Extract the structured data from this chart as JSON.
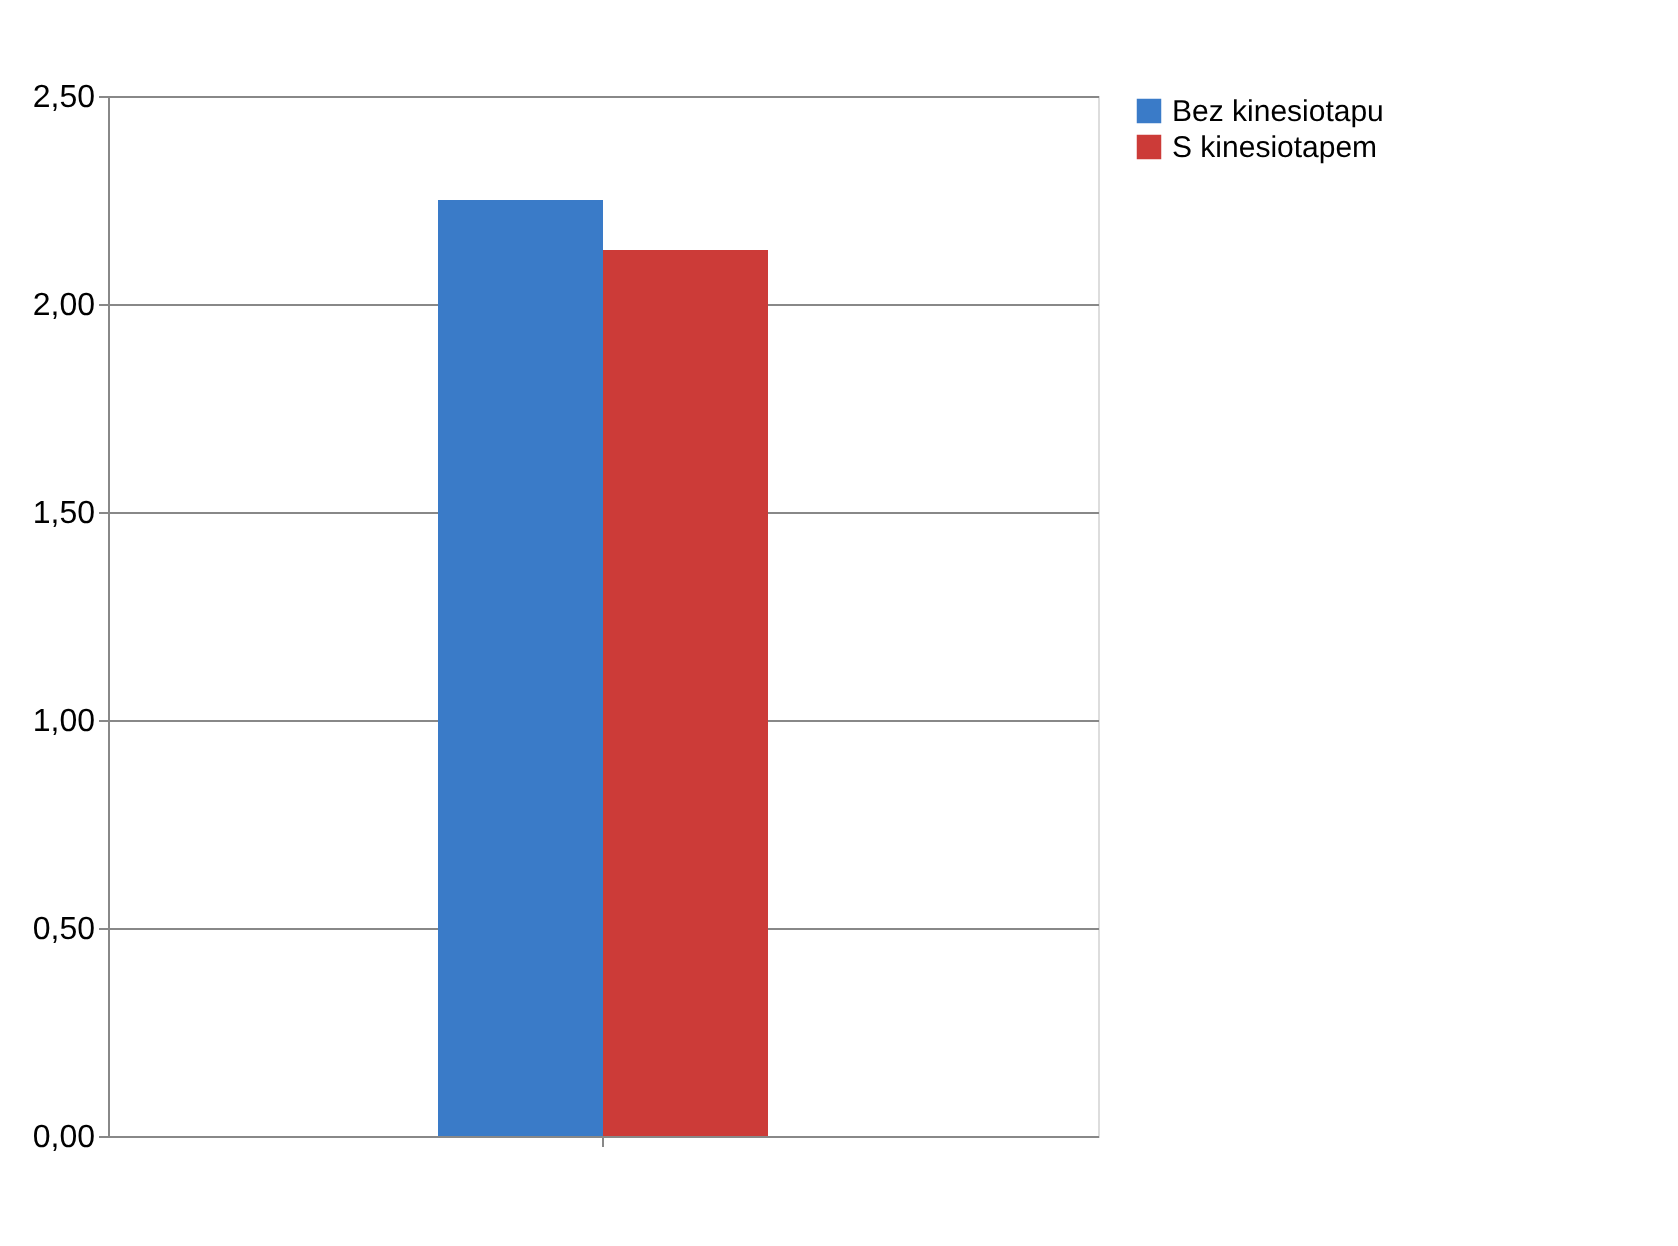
{
  "chart_data": {
    "type": "bar",
    "categories": [
      null
    ],
    "series": [
      {
        "name": "Bez kinesiotapu",
        "color": "#3a7bc8",
        "values": [
          2.25
        ]
      },
      {
        "name": "S kinesiotapem",
        "color": "#cc3b38",
        "values": [
          2.13
        ]
      }
    ],
    "ylim": [
      0,
      2.5
    ],
    "yticks": [
      {
        "value": 0,
        "label": "0,00"
      },
      {
        "value": 0.5,
        "label": "0,50"
      },
      {
        "value": 1,
        "label": "1,00"
      },
      {
        "value": 1.5,
        "label": "1,50"
      },
      {
        "value": 2,
        "label": "2,00"
      },
      {
        "value": 2.5,
        "label": "2,50"
      }
    ],
    "grid": "y",
    "legend": "right"
  }
}
